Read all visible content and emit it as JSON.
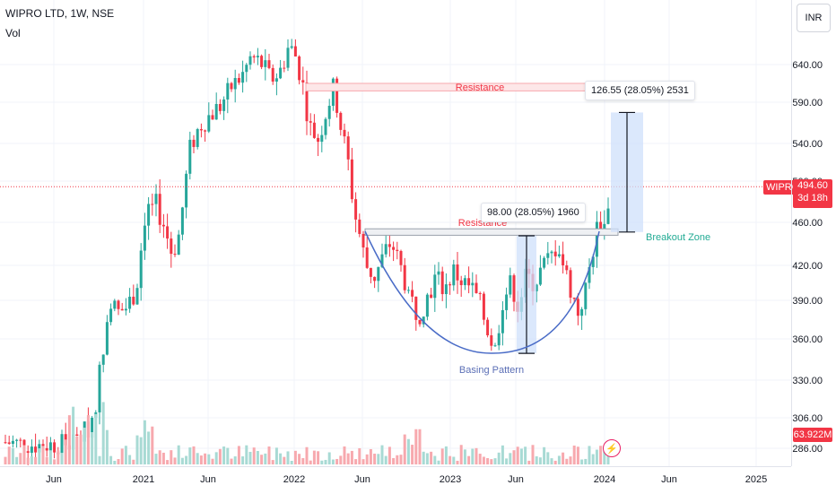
{
  "header": {
    "symbol_line": "WIPRO LTD, 1W, NSE",
    "volume_label": "Vol"
  },
  "currency_button": "INR",
  "price_tag": {
    "symbol": "WIPRO",
    "last_price": "494.60",
    "time_remaining": "3d 18h",
    "volume_value": "63.922M"
  },
  "colors": {
    "up": "#26a69a",
    "down": "#f23645",
    "volume_up": "#a8dad4",
    "volume_down": "#f7a9ae",
    "annotation_red": "#f23645",
    "annotation_green": "#22ab94",
    "annotation_blue": "#5b6fb6",
    "measure_fill": "#cfe0fb"
  },
  "annotations": {
    "resistance_top": "Resistance",
    "resistance_bottom": "Resistance",
    "breakout_zone": "Breakout Zone",
    "basing_pattern": "Basing Pattern",
    "measure_large": "126.55 (28.05%) 2531",
    "measure_small": "98.00 (28.05%) 1960"
  },
  "chart_data": {
    "type": "candlestick",
    "title": "WIPRO LTD, 1W, NSE",
    "y_ticks": [
      "640.00",
      "590.00",
      "540.00",
      "500.00",
      "460.00",
      "420.00",
      "390.00",
      "360.00",
      "330.00",
      "306.00",
      "286.00"
    ],
    "x_ticks": [
      "Jun",
      "2021",
      "Jun",
      "2022",
      "Jun",
      "2023",
      "Jun",
      "2024",
      "Jun",
      "2025"
    ],
    "ylim": [
      275,
      700
    ],
    "y_scale": "log",
    "resistance_zones": [
      {
        "label": "Resistance",
        "low": 605,
        "high": 615
      },
      {
        "label": "Resistance",
        "low": 448,
        "high": 454
      }
    ],
    "measurements": [
      {
        "label": "126.55 (28.05%) 2531",
        "from": 451,
        "to": 577.55
      },
      {
        "label": "98.00 (28.05%) 1960",
        "from": 349.5,
        "to": 447.5
      }
    ],
    "last_price": 494.6,
    "last_volume": "63.922M"
  }
}
